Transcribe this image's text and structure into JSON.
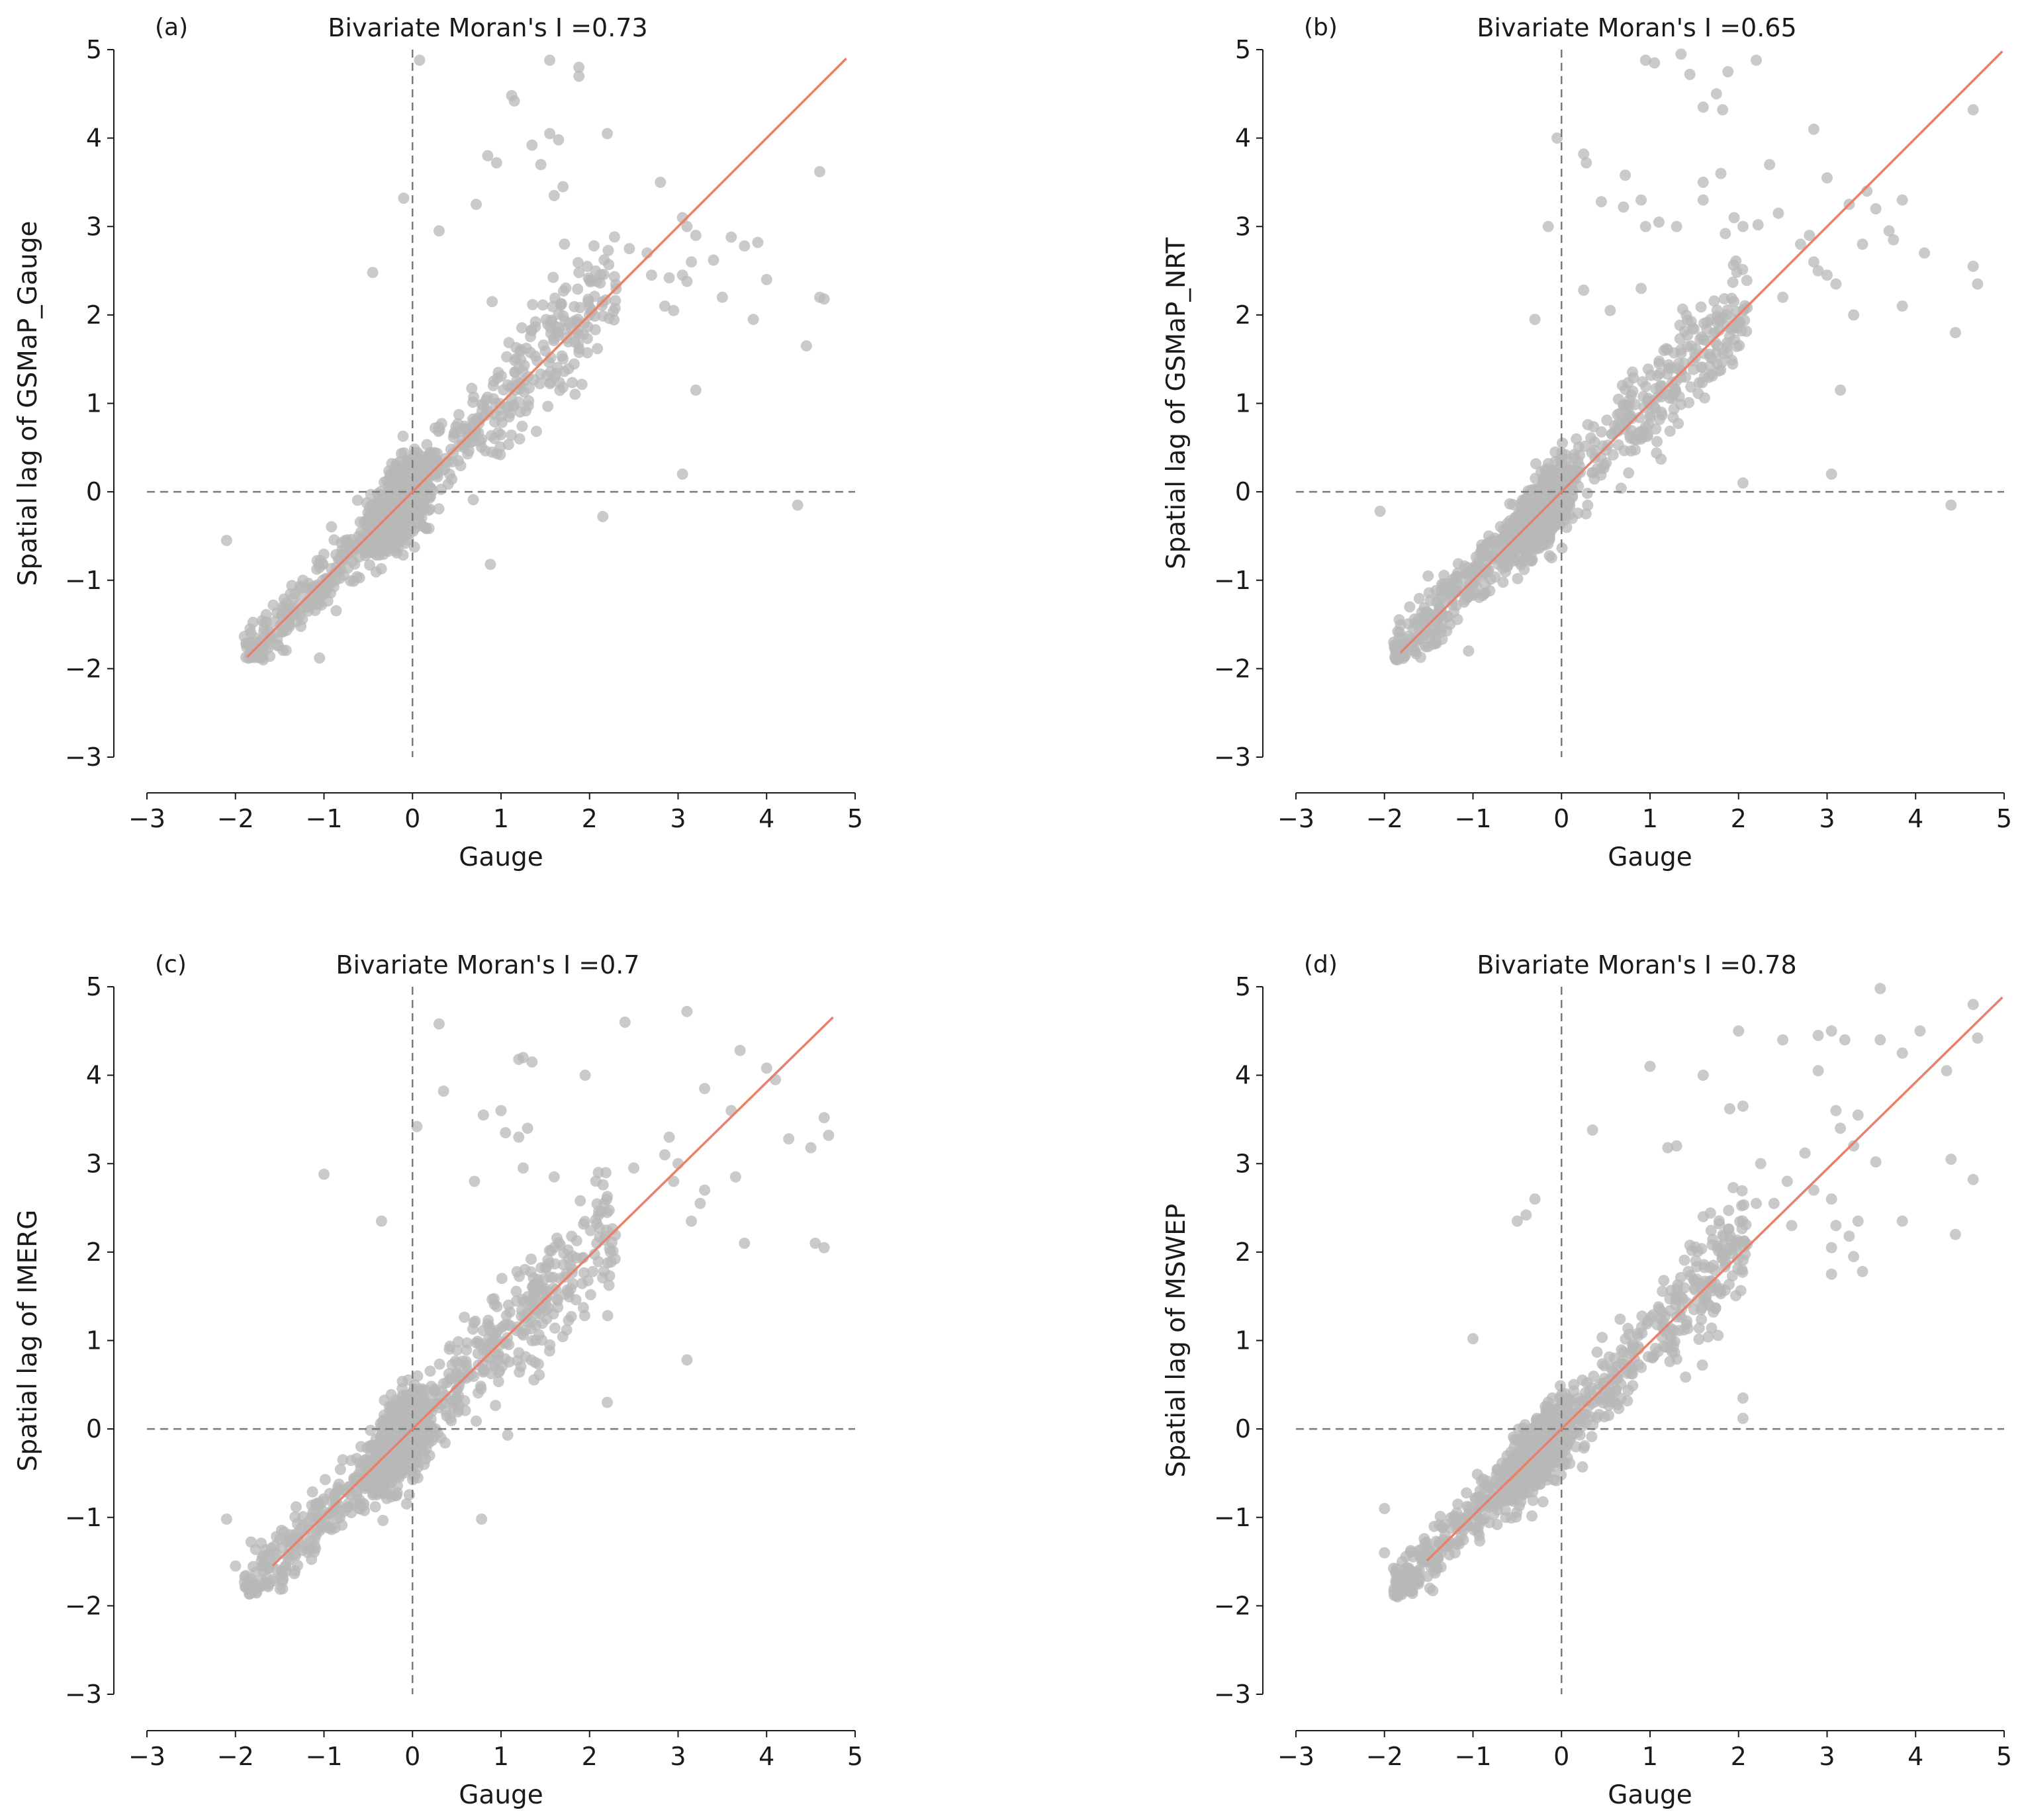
{
  "colors": {
    "points": "#b8b8b8",
    "regression_line": "#e8806a",
    "reference_lines": "#7a7a7a",
    "axes": "#1a1a1a"
  },
  "chart_data": [
    {
      "type": "scatter",
      "panel_label": "(a)",
      "title": "Bivariate Moran's I =0.73",
      "xlabel": "Gauge",
      "ylabel": "Spatial lag of GSMaP_Gauge",
      "xlim": [
        -3,
        5
      ],
      "ylim": [
        -3,
        5
      ],
      "xticks": [
        "−3",
        "−2",
        "−1",
        "0",
        "1",
        "2",
        "3",
        "4",
        "5"
      ],
      "yticks": [
        "−3",
        "−2",
        "−1",
        "0",
        "1",
        "2",
        "3",
        "4",
        "5"
      ],
      "slope": 1.0,
      "line_x": [
        -1.87,
        4.9
      ],
      "reference_lines": {
        "x": 0,
        "y": 0
      },
      "point_count": 1400,
      "cloud": {
        "residual_sd": 0.32,
        "x_range": [
          -1.9,
          2.3
        ]
      },
      "points": [
        [
          0.08,
          4.88
        ],
        [
          1.55,
          4.88
        ],
        [
          1.88,
          4.8
        ],
        [
          1.88,
          4.7
        ],
        [
          1.12,
          4.48
        ],
        [
          1.15,
          4.42
        ],
        [
          1.55,
          4.05
        ],
        [
          1.65,
          3.98
        ],
        [
          2.2,
          4.05
        ],
        [
          0.85,
          3.8
        ],
        [
          0.95,
          3.72
        ],
        [
          1.35,
          3.92
        ],
        [
          1.45,
          3.7
        ],
        [
          1.7,
          3.45
        ],
        [
          2.8,
          3.5
        ],
        [
          -0.1,
          3.32
        ],
        [
          0.72,
          3.25
        ],
        [
          1.6,
          3.35
        ],
        [
          3.05,
          3.1
        ],
        [
          4.6,
          3.62
        ],
        [
          3.1,
          3.0
        ],
        [
          3.2,
          2.9
        ],
        [
          3.6,
          2.88
        ],
        [
          3.75,
          2.78
        ],
        [
          3.9,
          2.82
        ],
        [
          2.45,
          2.75
        ],
        [
          2.65,
          2.7
        ],
        [
          3.15,
          2.6
        ],
        [
          3.4,
          2.62
        ],
        [
          2.7,
          2.45
        ],
        [
          2.9,
          2.42
        ],
        [
          3.05,
          2.45
        ],
        [
          3.1,
          2.38
        ],
        [
          4.0,
          2.4
        ],
        [
          4.6,
          2.2
        ],
        [
          4.65,
          2.18
        ],
        [
          2.85,
          2.1
        ],
        [
          2.95,
          2.05
        ],
        [
          3.5,
          2.2
        ],
        [
          3.85,
          1.95
        ],
        [
          4.45,
          1.65
        ],
        [
          3.2,
          1.15
        ],
        [
          3.05,
          0.2
        ],
        [
          -0.45,
          2.48
        ],
        [
          0.9,
          2.15
        ],
        [
          0.3,
          2.95
        ],
        [
          4.35,
          -0.15
        ],
        [
          2.15,
          -0.28
        ],
        [
          0.88,
          -0.82
        ],
        [
          -1.05,
          -1.88
        ],
        [
          -2.1,
          -0.55
        ]
      ]
    },
    {
      "type": "scatter",
      "panel_label": "(b)",
      "title": "Bivariate Moran's I =0.65",
      "xlabel": "Gauge",
      "ylabel": "Spatial lag of GSMaP_NRT",
      "xlim": [
        -3,
        5
      ],
      "ylim": [
        -3,
        5
      ],
      "xticks": [
        "−3",
        "−2",
        "−1",
        "0",
        "1",
        "2",
        "3",
        "4",
        "5"
      ],
      "yticks": [
        "−3",
        "−2",
        "−1",
        "0",
        "1",
        "2",
        "3",
        "4",
        "5"
      ],
      "slope": 1.0,
      "line_x": [
        -1.82,
        4.98
      ],
      "reference_lines": {
        "x": 0,
        "y": 0
      },
      "point_count": 1400,
      "cloud": {
        "residual_sd": 0.3,
        "x_range": [
          -1.9,
          2.1
        ]
      },
      "points": [
        [
          0.95,
          4.88
        ],
        [
          1.05,
          4.85
        ],
        [
          1.35,
          4.95
        ],
        [
          2.2,
          4.88
        ],
        [
          1.45,
          4.72
        ],
        [
          1.75,
          4.5
        ],
        [
          1.6,
          4.35
        ],
        [
          1.82,
          4.32
        ],
        [
          1.88,
          4.75
        ],
        [
          -0.05,
          4.0
        ],
        [
          0.25,
          3.82
        ],
        [
          0.28,
          3.72
        ],
        [
          0.72,
          3.58
        ],
        [
          1.6,
          3.5
        ],
        [
          1.8,
          3.6
        ],
        [
          2.35,
          3.7
        ],
        [
          2.85,
          4.1
        ],
        [
          3.0,
          3.55
        ],
        [
          3.25,
          3.25
        ],
        [
          3.45,
          3.4
        ],
        [
          3.55,
          3.2
        ],
        [
          3.85,
          3.3
        ],
        [
          4.65,
          4.32
        ],
        [
          0.45,
          3.28
        ],
        [
          0.7,
          3.22
        ],
        [
          0.9,
          3.3
        ],
        [
          1.6,
          3.3
        ],
        [
          1.95,
          3.1
        ],
        [
          2.05,
          3.0
        ],
        [
          1.85,
          2.92
        ],
        [
          2.22,
          3.02
        ],
        [
          2.45,
          3.15
        ],
        [
          0.95,
          3.0
        ],
        [
          1.1,
          3.05
        ],
        [
          1.3,
          3.0
        ],
        [
          -0.15,
          3.0
        ],
        [
          2.7,
          2.8
        ],
        [
          2.8,
          2.9
        ],
        [
          2.85,
          2.6
        ],
        [
          3.0,
          2.45
        ],
        [
          3.1,
          2.35
        ],
        [
          3.4,
          2.8
        ],
        [
          3.7,
          2.95
        ],
        [
          3.75,
          2.85
        ],
        [
          4.1,
          2.7
        ],
        [
          4.65,
          2.55
        ],
        [
          4.7,
          2.35
        ],
        [
          0.25,
          2.28
        ],
        [
          0.55,
          2.05
        ],
        [
          0.9,
          2.3
        ],
        [
          2.5,
          2.2
        ],
        [
          2.9,
          2.5
        ],
        [
          3.3,
          2.0
        ],
        [
          3.85,
          2.1
        ],
        [
          4.45,
          1.8
        ],
        [
          -0.3,
          1.95
        ],
        [
          3.15,
          1.15
        ],
        [
          3.05,
          0.2
        ],
        [
          4.4,
          -0.15
        ],
        [
          2.05,
          0.1
        ],
        [
          -1.05,
          -1.8
        ],
        [
          -2.05,
          -0.22
        ]
      ]
    },
    {
      "type": "scatter",
      "panel_label": "(c)",
      "title": "Bivariate Moran's I =0.7",
      "xlabel": "Gauge",
      "ylabel": "Spatial lag of IMERG",
      "xlim": [
        -3,
        5
      ],
      "ylim": [
        -3,
        5
      ],
      "xticks": [
        "−3",
        "−2",
        "−1",
        "0",
        "1",
        "2",
        "3",
        "4",
        "5"
      ],
      "yticks": [
        "−3",
        "−2",
        "−1",
        "0",
        "1",
        "2",
        "3",
        "4",
        "5"
      ],
      "slope": 0.98,
      "line_x": [
        -1.58,
        4.75
      ],
      "reference_lines": {
        "x": 0,
        "y": 0
      },
      "point_count": 1400,
      "cloud": {
        "residual_sd": 0.36,
        "x_range": [
          -1.9,
          2.3
        ]
      },
      "points": [
        [
          0.3,
          4.58
        ],
        [
          3.1,
          4.72
        ],
        [
          2.4,
          4.6
        ],
        [
          1.2,
          4.18
        ],
        [
          1.25,
          4.2
        ],
        [
          1.35,
          4.15
        ],
        [
          1.95,
          4.0
        ],
        [
          3.7,
          4.28
        ],
        [
          4.0,
          4.08
        ],
        [
          4.1,
          3.95
        ],
        [
          0.35,
          3.82
        ],
        [
          0.8,
          3.55
        ],
        [
          1.0,
          3.6
        ],
        [
          1.05,
          3.35
        ],
        [
          1.2,
          3.3
        ],
        [
          1.3,
          3.4
        ],
        [
          3.3,
          3.85
        ],
        [
          3.6,
          3.6
        ],
        [
          4.65,
          3.52
        ],
        [
          4.7,
          3.32
        ],
        [
          4.5,
          3.18
        ],
        [
          2.9,
          3.3
        ],
        [
          3.0,
          3.0
        ],
        [
          2.85,
          3.1
        ],
        [
          2.95,
          2.8
        ],
        [
          3.3,
          2.7
        ],
        [
          3.65,
          2.85
        ],
        [
          4.25,
          3.28
        ],
        [
          1.25,
          2.95
        ],
        [
          1.6,
          2.85
        ],
        [
          2.1,
          2.9
        ],
        [
          2.5,
          2.95
        ],
        [
          0.7,
          2.8
        ],
        [
          -1.0,
          2.88
        ],
        [
          -0.35,
          2.35
        ],
        [
          3.15,
          2.35
        ],
        [
          3.25,
          2.55
        ],
        [
          3.75,
          2.1
        ],
        [
          4.55,
          2.1
        ],
        [
          4.65,
          2.05
        ],
        [
          0.05,
          3.42
        ],
        [
          3.1,
          0.78
        ],
        [
          2.2,
          0.3
        ],
        [
          0.78,
          -1.02
        ],
        [
          -2.1,
          -1.02
        ],
        [
          -2.0,
          -1.55
        ]
      ]
    },
    {
      "type": "scatter",
      "panel_label": "(d)",
      "title": "Bivariate Moran's I =0.78",
      "xlabel": "Gauge",
      "ylabel": "Spatial lag of MSWEP",
      "xlim": [
        -3,
        5
      ],
      "ylim": [
        -3,
        5
      ],
      "xticks": [
        "−3",
        "−2",
        "−1",
        "0",
        "1",
        "2",
        "3",
        "4",
        "5"
      ],
      "yticks": [
        "−3",
        "−2",
        "−1",
        "0",
        "1",
        "2",
        "3",
        "4",
        "5"
      ],
      "slope": 0.98,
      "line_x": [
        -1.52,
        4.98
      ],
      "reference_lines": {
        "x": 0,
        "y": 0
      },
      "point_count": 1400,
      "cloud": {
        "residual_sd": 0.3,
        "x_range": [
          -1.9,
          2.1
        ]
      },
      "points": [
        [
          3.6,
          4.98
        ],
        [
          4.65,
          4.8
        ],
        [
          4.7,
          4.42
        ],
        [
          3.6,
          4.4
        ],
        [
          3.2,
          4.4
        ],
        [
          4.05,
          4.5
        ],
        [
          3.85,
          4.25
        ],
        [
          2.0,
          4.5
        ],
        [
          2.5,
          4.4
        ],
        [
          2.9,
          4.45
        ],
        [
          3.05,
          4.5
        ],
        [
          4.35,
          4.05
        ],
        [
          1.0,
          4.1
        ],
        [
          1.6,
          4.0
        ],
        [
          1.9,
          3.62
        ],
        [
          2.05,
          3.65
        ],
        [
          2.9,
          4.05
        ],
        [
          3.35,
          3.55
        ],
        [
          3.1,
          3.6
        ],
        [
          3.15,
          3.4
        ],
        [
          0.35,
          3.38
        ],
        [
          1.2,
          3.18
        ],
        [
          1.3,
          3.2
        ],
        [
          2.25,
          3.0
        ],
        [
          2.75,
          3.12
        ],
        [
          3.3,
          3.2
        ],
        [
          3.55,
          3.02
        ],
        [
          2.55,
          2.8
        ],
        [
          2.85,
          2.7
        ],
        [
          3.05,
          2.6
        ],
        [
          2.4,
          2.55
        ],
        [
          3.1,
          2.3
        ],
        [
          3.25,
          2.18
        ],
        [
          3.35,
          2.35
        ],
        [
          3.05,
          2.05
        ],
        [
          3.3,
          1.95
        ],
        [
          3.05,
          1.75
        ],
        [
          3.4,
          1.78
        ],
        [
          3.85,
          2.35
        ],
        [
          4.45,
          2.2
        ],
        [
          4.4,
          3.05
        ],
        [
          4.65,
          2.82
        ],
        [
          2.2,
          2.55
        ],
        [
          2.6,
          2.3
        ],
        [
          1.6,
          2.4
        ],
        [
          -0.5,
          2.35
        ],
        [
          -0.4,
          2.42
        ],
        [
          -0.3,
          2.6
        ],
        [
          -1.0,
          1.02
        ],
        [
          2.05,
          0.12
        ],
        [
          2.05,
          0.35
        ],
        [
          -2.0,
          -0.9
        ],
        [
          -2.0,
          -1.4
        ],
        [
          -1.8,
          -1.5
        ]
      ]
    }
  ]
}
